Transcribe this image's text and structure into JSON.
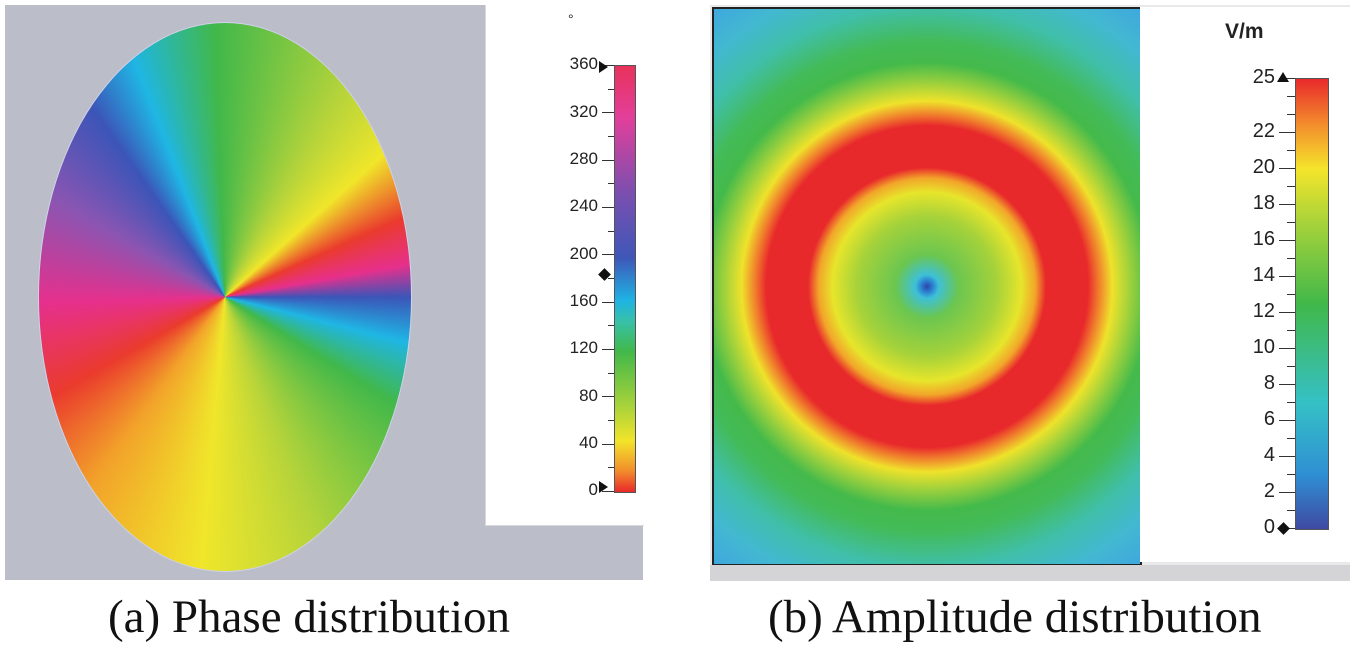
{
  "panels": [
    {
      "caption": "(a) Phase distribution",
      "legend": {
        "unit": "°",
        "ticks": [
          "360",
          "320",
          "280",
          "240",
          "200",
          "160",
          "120",
          "80",
          "40",
          "0"
        ],
        "range": [
          0,
          360
        ]
      },
      "colors": {
        "background": "#bbbdc8"
      }
    },
    {
      "caption": "(b) Amplitude distribution",
      "legend": {
        "unit": "V/m",
        "ticks": [
          "25",
          "22",
          "20",
          "18",
          "16",
          "14",
          "12",
          "10",
          "8",
          "6",
          "4",
          "2",
          "0"
        ],
        "range": [
          0,
          25
        ]
      },
      "colors": {
        "background": "#e9e9ea",
        "ring": "#e8292b",
        "center": "#2e45a8"
      }
    }
  ]
}
